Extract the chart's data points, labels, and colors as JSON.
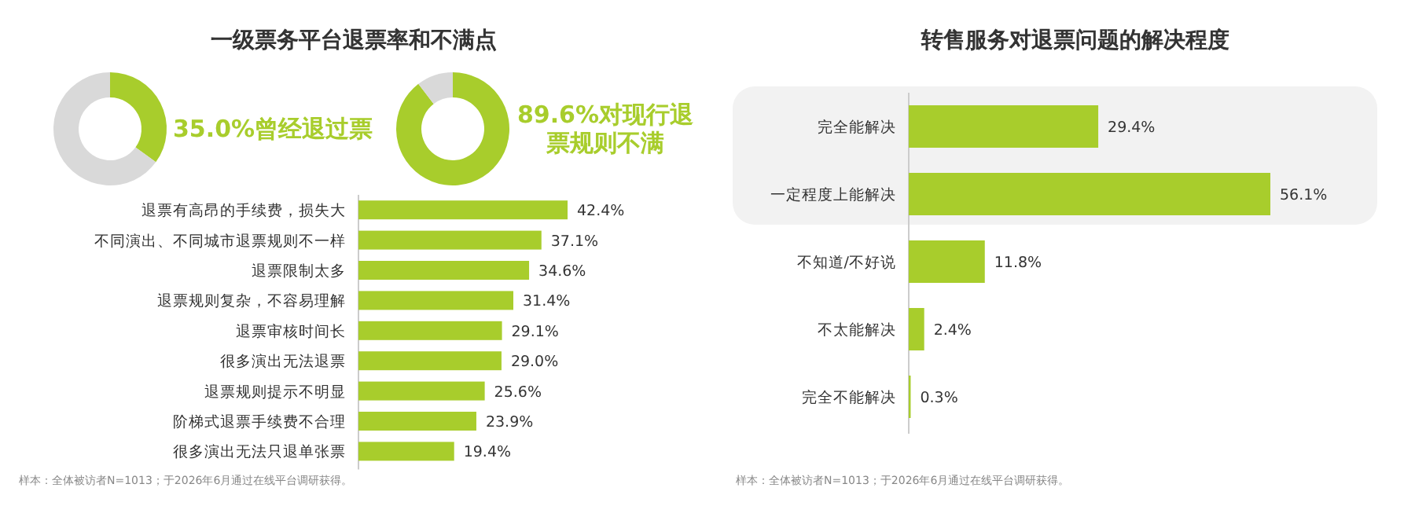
{
  "chart_data": [
    {
      "type": "donut",
      "title": "一级票务平台退票率和不满点",
      "categories": [
        "曾经退过票",
        null
      ],
      "values": [
        35.0,
        65.0
      ],
      "colors": [
        "#a8cd2c",
        "#d9d9d9"
      ],
      "value_labels": [
        "35.0%",
        null
      ]
    },
    {
      "type": "donut",
      "categories": [
        "对现行退票规则不满",
        null
      ],
      "values": [
        89.6,
        10.4
      ],
      "colors": [
        "#a8cd2c",
        "#d9d9d9"
      ],
      "value_labels": [
        "89.6%",
        null
      ]
    },
    {
      "type": "bar",
      "orientation": "horizontal",
      "color": "#a8cd2c",
      "categories": [
        "退票有高昂的手续费，损失大",
        "不同演出、不同城市退票规则不一样",
        "退票限制太多",
        "退票规则复杂，不容易理解",
        "退票审核时间长",
        "很多演出无法退票",
        "退票规则提示不明显",
        "阶梯式退票手续费不合理",
        "很多演出无法只退单张票"
      ],
      "values": [
        42.4,
        37.1,
        34.6,
        31.4,
        29.1,
        29.0,
        25.6,
        23.9,
        19.4
      ],
      "value_labels": [
        "42.4%",
        "37.1%",
        "34.6%",
        "31.4%",
        "29.1%",
        "29.0%",
        "25.6%",
        "23.9%",
        "19.4%"
      ],
      "annotations": [
        "样本：全体被访者N=1013；于2026年6月通过在线平台调研获得。"
      ]
    },
    {
      "type": "bar",
      "orientation": "horizontal",
      "title": "转售服务对退票问题的解决程度",
      "color": "#a8cd2c",
      "categories": [
        "完全能解决",
        "一定程度上能解决",
        "不知道/不好说",
        "不太能解决",
        "完全不能解决"
      ],
      "values": [
        29.4,
        56.1,
        11.8,
        2.4,
        0.3
      ],
      "value_labels": [
        "29.4%",
        "56.1%",
        "11.8%",
        "2.4%",
        "0.3%"
      ],
      "bands": [
        {
          "axis": "y",
          "from": "完全能解决",
          "to": "一定程度上能解决",
          "color": "#f2f2f2"
        }
      ],
      "annotations": [
        "样本：全体被访者N=1013；于2026年6月通过在线平台调研获得。"
      ]
    }
  ]
}
